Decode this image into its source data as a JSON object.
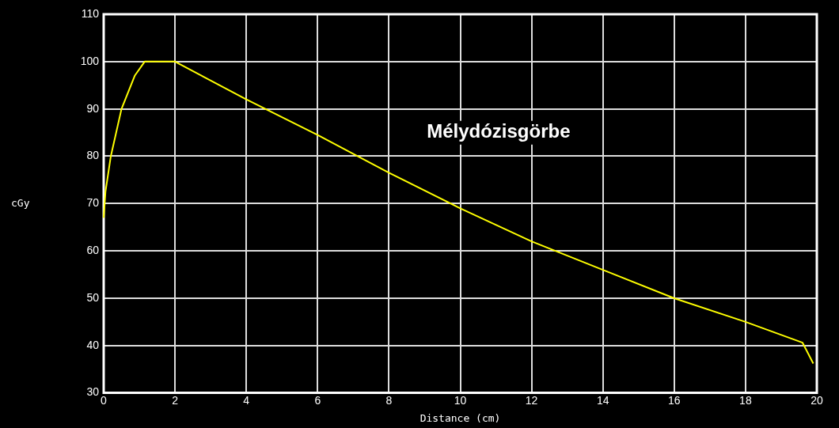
{
  "chart_data": {
    "type": "line",
    "title": "Mélydózisgörbe",
    "xlabel": "Distance (cm)",
    "ylabel": "cGy",
    "x": [
      0,
      0.05,
      0.2,
      0.5,
      0.87,
      1.15,
      2,
      4,
      6,
      8,
      10,
      12,
      14,
      16,
      18,
      19.6,
      19.9
    ],
    "series": [
      {
        "color": "#ffff00",
        "values": [
          67,
          72.5,
          80,
          90,
          97,
          100,
          100,
          92,
          84.5,
          76.5,
          69,
          62,
          56,
          50,
          45,
          40.6,
          36.2
        ]
      }
    ],
    "xlim": [
      0,
      20
    ],
    "xticks": [
      0,
      2,
      4,
      6,
      8,
      10,
      12,
      14,
      16,
      18,
      20
    ],
    "ylim": [
      30,
      110
    ],
    "yticks": [
      30,
      40,
      50,
      60,
      70,
      80,
      90,
      100,
      110
    ],
    "grid": true,
    "legend": false,
    "marker": "none",
    "line_style": "solid"
  }
}
